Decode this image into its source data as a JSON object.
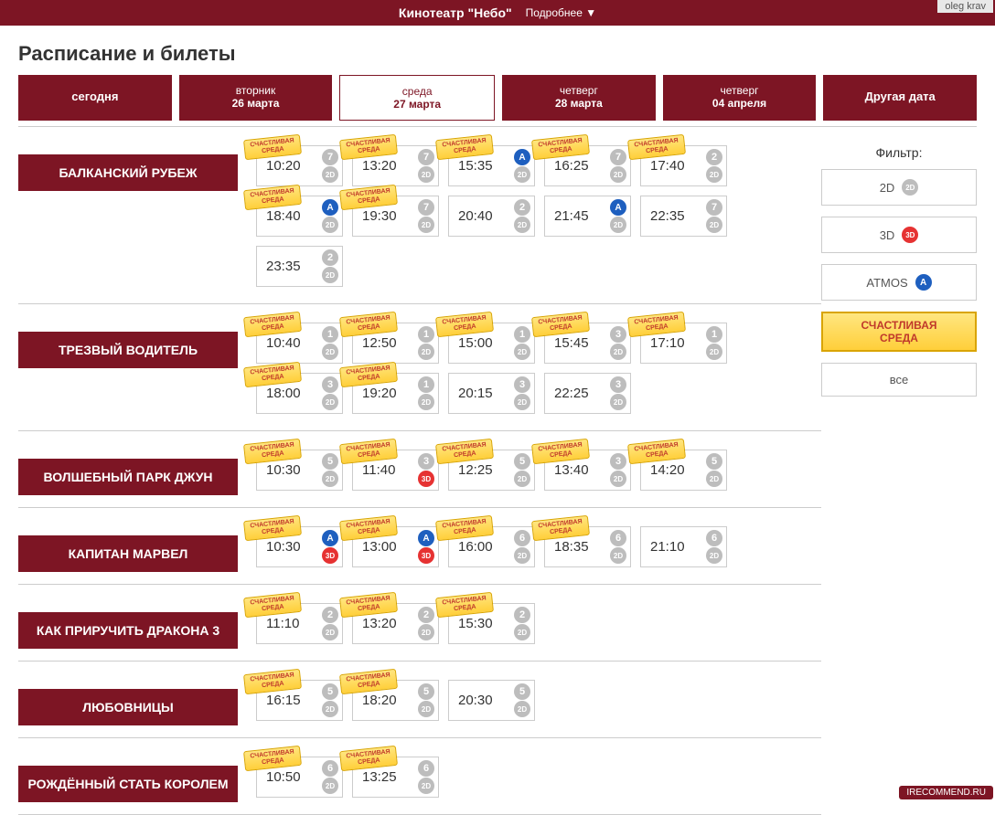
{
  "header": {
    "title": "Кинотеатр \"Небо\"",
    "more": "Подробнее ▼",
    "user": "oleg krav"
  },
  "page_title": "Расписание и билеты",
  "ticket_label": "СЧАСТЛИВАЯ СРЕДА",
  "dates": [
    {
      "day": "",
      "date": "сегодня",
      "single": true,
      "selected": false
    },
    {
      "day": "вторник",
      "date": "26 марта",
      "single": false,
      "selected": false
    },
    {
      "day": "среда",
      "date": "27 марта",
      "single": false,
      "selected": true
    },
    {
      "day": "четверг",
      "date": "28 марта",
      "single": false,
      "selected": false
    },
    {
      "day": "четверг",
      "date": "04 апреля",
      "single": false,
      "selected": false
    },
    {
      "day": "",
      "date": "Другая дата",
      "single": true,
      "selected": false
    }
  ],
  "filters": {
    "title": "Фильтр:",
    "items": [
      {
        "label": "2D",
        "badge": "2d"
      },
      {
        "label": "3D",
        "badge": "3d"
      },
      {
        "label": "ATMOS",
        "badge": "atmos"
      },
      {
        "label": "СЧАСТЛИВАЯ СРЕДА",
        "promo": true
      },
      {
        "label": "все"
      }
    ]
  },
  "movies": [
    {
      "title": "БАЛКАНСКИЙ РУБЕЖ",
      "shows": [
        {
          "t": "10:20",
          "scr": "7",
          "fmt": "2d",
          "p": true
        },
        {
          "t": "13:20",
          "scr": "7",
          "fmt": "2d",
          "p": true
        },
        {
          "t": "15:35",
          "scr": "A",
          "fmt": "2d",
          "p": true,
          "atmos": true
        },
        {
          "t": "16:25",
          "scr": "7",
          "fmt": "2d",
          "p": true
        },
        {
          "t": "17:40",
          "scr": "2",
          "fmt": "2d",
          "p": true
        },
        {
          "t": "18:40",
          "scr": "A",
          "fmt": "2d",
          "p": true,
          "atmos": true
        },
        {
          "t": "19:30",
          "scr": "7",
          "fmt": "2d",
          "p": true
        },
        {
          "t": "20:40",
          "scr": "2",
          "fmt": "2d",
          "p": false
        },
        {
          "t": "21:45",
          "scr": "A",
          "fmt": "2d",
          "p": false,
          "atmos": true
        },
        {
          "t": "22:35",
          "scr": "7",
          "fmt": "2d",
          "p": false
        },
        {
          "t": "23:35",
          "scr": "2",
          "fmt": "2d",
          "p": false
        }
      ]
    },
    {
      "title": "ТРЕЗВЫЙ ВОДИТЕЛЬ",
      "shows": [
        {
          "t": "10:40",
          "scr": "1",
          "fmt": "2d",
          "p": true
        },
        {
          "t": "12:50",
          "scr": "1",
          "fmt": "2d",
          "p": true
        },
        {
          "t": "15:00",
          "scr": "1",
          "fmt": "2d",
          "p": true
        },
        {
          "t": "15:45",
          "scr": "3",
          "fmt": "2d",
          "p": true
        },
        {
          "t": "17:10",
          "scr": "1",
          "fmt": "2d",
          "p": true
        },
        {
          "t": "18:00",
          "scr": "3",
          "fmt": "2d",
          "p": true
        },
        {
          "t": "19:20",
          "scr": "1",
          "fmt": "2d",
          "p": true
        },
        {
          "t": "20:15",
          "scr": "3",
          "fmt": "2d",
          "p": false
        },
        {
          "t": "22:25",
          "scr": "3",
          "fmt": "2d",
          "p": false
        }
      ]
    },
    {
      "title": "ВОЛШЕБНЫЙ ПАРК ДЖУН",
      "shows": [
        {
          "t": "10:30",
          "scr": "5",
          "fmt": "2d",
          "p": true
        },
        {
          "t": "11:40",
          "scr": "3",
          "fmt": "3d",
          "p": true
        },
        {
          "t": "12:25",
          "scr": "5",
          "fmt": "2d",
          "p": true
        },
        {
          "t": "13:40",
          "scr": "3",
          "fmt": "2d",
          "p": true
        },
        {
          "t": "14:20",
          "scr": "5",
          "fmt": "2d",
          "p": true
        }
      ]
    },
    {
      "title": "КАПИТАН МАРВЕЛ",
      "shows": [
        {
          "t": "10:30",
          "scr": "A",
          "fmt": "3d",
          "p": true,
          "atmos": true
        },
        {
          "t": "13:00",
          "scr": "A",
          "fmt": "3d",
          "p": true,
          "atmos": true
        },
        {
          "t": "16:00",
          "scr": "6",
          "fmt": "2d",
          "p": true
        },
        {
          "t": "18:35",
          "scr": "6",
          "fmt": "2d",
          "p": true
        },
        {
          "t": "21:10",
          "scr": "6",
          "fmt": "2d",
          "p": false
        }
      ]
    },
    {
      "title": "КАК ПРИРУЧИТЬ ДРАКОНА 3",
      "shows": [
        {
          "t": "11:10",
          "scr": "2",
          "fmt": "2d",
          "p": true
        },
        {
          "t": "13:20",
          "scr": "2",
          "fmt": "2d",
          "p": true
        },
        {
          "t": "15:30",
          "scr": "2",
          "fmt": "2d",
          "p": true
        }
      ]
    },
    {
      "title": "ЛЮБОВНИЦЫ",
      "shows": [
        {
          "t": "16:15",
          "scr": "5",
          "fmt": "2d",
          "p": true
        },
        {
          "t": "18:20",
          "scr": "5",
          "fmt": "2d",
          "p": true
        },
        {
          "t": "20:30",
          "scr": "5",
          "fmt": "2d",
          "p": false
        }
      ]
    },
    {
      "title": "РОЖДЁННЫЙ СТАТЬ КОРОЛЕМ",
      "shows": [
        {
          "t": "10:50",
          "scr": "6",
          "fmt": "2d",
          "p": true
        },
        {
          "t": "13:25",
          "scr": "6",
          "fmt": "2d",
          "p": true
        }
      ]
    }
  ],
  "watermark": "IRECOMMEND.RU"
}
